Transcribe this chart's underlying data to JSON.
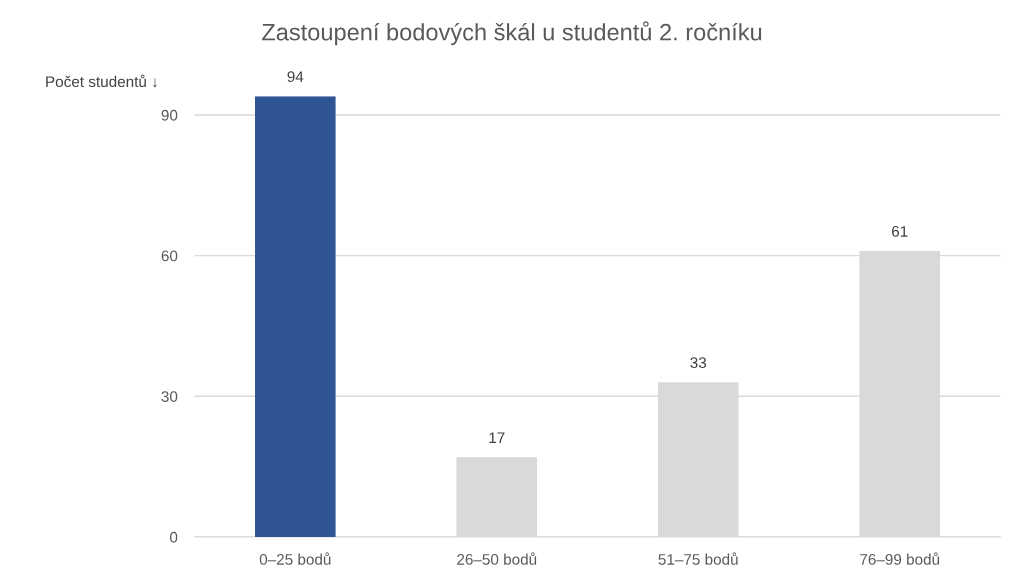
{
  "chart_data": {
    "type": "bar",
    "title": "Zastoupení bodových škál u studentů 2. ročníku",
    "ylabel": "Počet studentů ↓",
    "categories": [
      "0–25 bodů",
      "26–50 bodů",
      "51–75 bodů",
      "76–99 bodů"
    ],
    "values": [
      94,
      17,
      33,
      61
    ],
    "colors": [
      "#2f5597",
      "#d9d9d9",
      "#d9d9d9",
      "#d9d9d9"
    ],
    "ylim": [
      0,
      94
    ],
    "yticks": [
      0,
      30,
      60,
      90
    ],
    "grid": "y",
    "data_labels": true,
    "legend": false
  }
}
